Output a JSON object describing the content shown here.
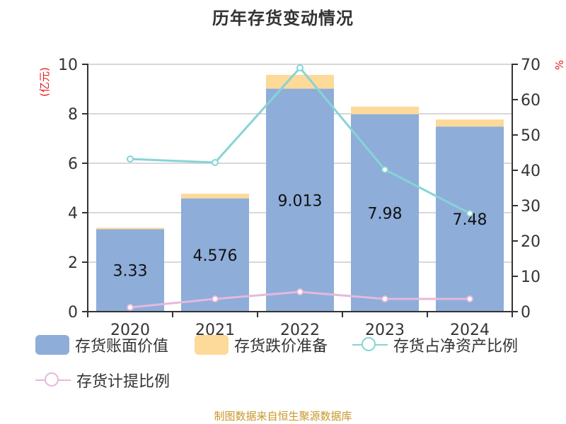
{
  "title": "历年存货变动情况",
  "left_axis_unit": "(亿元)",
  "right_axis_unit": "%",
  "footer": "制图数据来自恒生聚源数据库",
  "colors": {
    "book_value": "#8eadd9",
    "impairment": "#fdd99a",
    "net_asset_ratio": "#86d4d6",
    "provision_ratio": "#e6b8dc",
    "axis": "#333333",
    "grid": "#cccccc",
    "unit_label": "#e8191c",
    "footer": "#c8962a"
  },
  "legend": [
    {
      "label": "存货账面价值",
      "type": "box",
      "color": "#8eadd9"
    },
    {
      "label": "存货跌价准备",
      "type": "box",
      "color": "#fdd99a"
    },
    {
      "label": "存货占净资产比例",
      "type": "line",
      "color": "#86d4d6"
    },
    {
      "label": "存货计提比例",
      "type": "line",
      "color": "#e6b8dc"
    }
  ],
  "chart_data": {
    "type": "bar",
    "title": "历年存货变动情况",
    "categories": [
      "2020",
      "2021",
      "2022",
      "2023",
      "2024"
    ],
    "series": [
      {
        "name": "存货账面价值",
        "type": "bar",
        "stack": "inv",
        "axis": "left",
        "values": [
          3.33,
          4.576,
          9.013,
          7.98,
          7.48
        ],
        "labels": [
          "3.33",
          "4.576",
          "9.013",
          "7.98",
          "7.48"
        ]
      },
      {
        "name": "存货跌价准备",
        "type": "bar",
        "stack": "inv",
        "axis": "left",
        "values": [
          0.06,
          0.19,
          0.56,
          0.31,
          0.29
        ]
      },
      {
        "name": "存货占净资产比例",
        "type": "line",
        "axis": "right",
        "values": [
          43.2,
          42.2,
          69.0,
          40.2,
          27.8
        ]
      },
      {
        "name": "存货计提比例",
        "type": "line",
        "axis": "right",
        "values": [
          1.2,
          3.6,
          5.6,
          3.6,
          3.6
        ]
      }
    ],
    "xlabel": "",
    "ylabel": "(亿元)",
    "ylabel_right": "%",
    "ylim": [
      0,
      10
    ],
    "ylim_right": [
      0,
      70
    ],
    "yticks": [
      0,
      2,
      4,
      6,
      8,
      10
    ],
    "yticks_right": [
      0,
      10,
      20,
      30,
      40,
      50,
      60,
      70
    ],
    "grid": true,
    "legend_position": "bottom"
  }
}
